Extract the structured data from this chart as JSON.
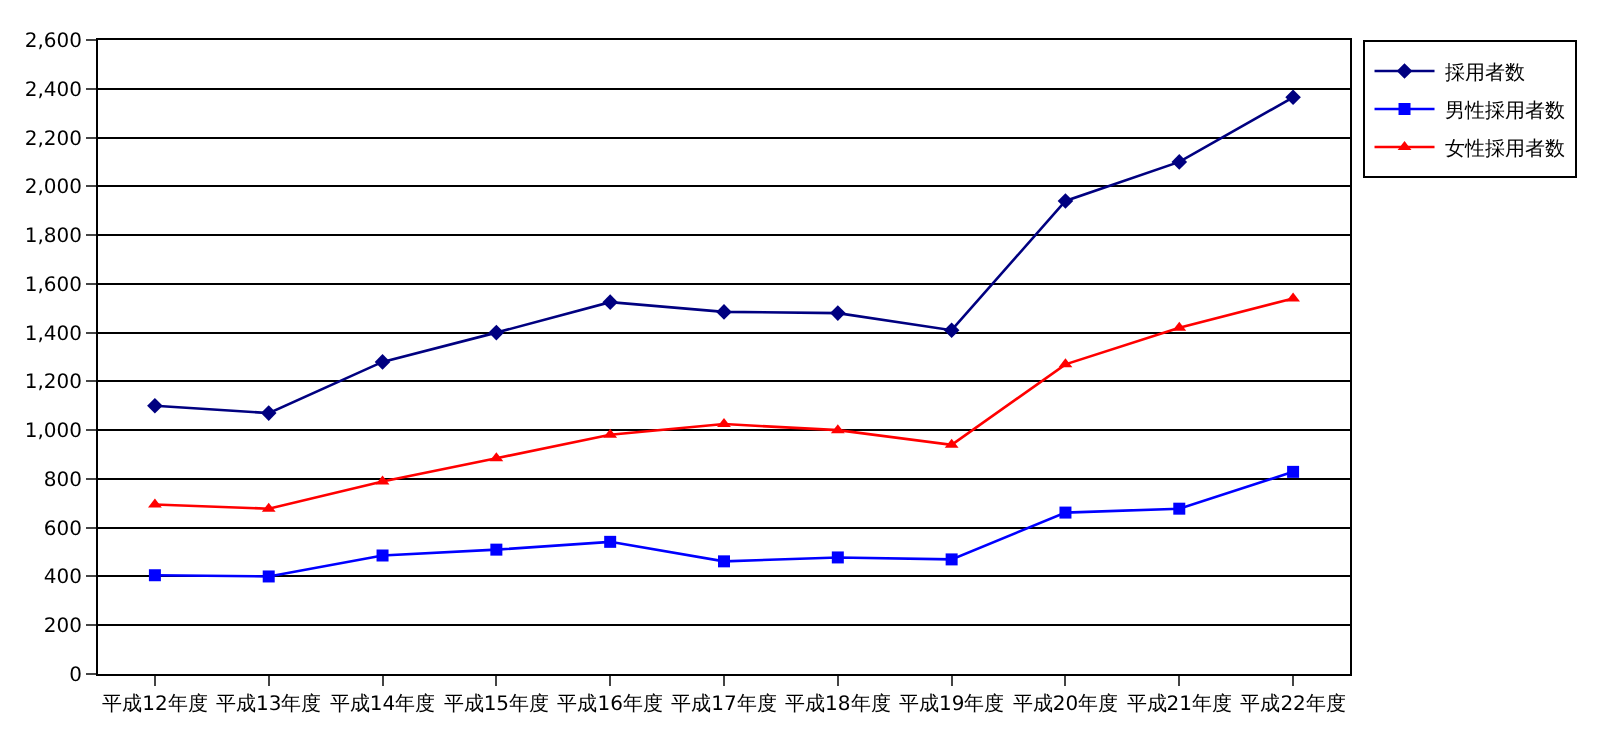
{
  "chart_data": {
    "type": "line",
    "categories": [
      "平成12年度",
      "平成13年度",
      "平成14年度",
      "平成15年度",
      "平成16年度",
      "平成17年度",
      "平成18年度",
      "平成19年度",
      "平成20年度",
      "平成21年度",
      "平成22年度"
    ],
    "series": [
      {
        "name": "採用者数",
        "color": "#000080",
        "marker": "diamond",
        "values": [
          1100,
          1070,
          1280,
          1400,
          1525,
          1485,
          1480,
          1410,
          1940,
          2100,
          2365
        ]
      },
      {
        "name": "男性採用者数",
        "color": "#0000ff",
        "marker": "square",
        "values": [
          405,
          400,
          486,
          510,
          542,
          462,
          478,
          470,
          662,
          678,
          829
        ]
      },
      {
        "name": "女性採用者数",
        "color": "#ff0000",
        "marker": "triangle",
        "values": [
          695,
          678,
          789,
          885,
          981,
          1025,
          1000,
          940,
          1270,
          1420,
          1540
        ]
      }
    ],
    "ylim": [
      0,
      2600
    ],
    "yticks": [
      {
        "value": 0,
        "label": "0"
      },
      {
        "value": 200,
        "label": "200"
      },
      {
        "value": 400,
        "label": "400"
      },
      {
        "value": 600,
        "label": "600"
      },
      {
        "value": 800,
        "label": "800"
      },
      {
        "value": 1000,
        "label": "1,000"
      },
      {
        "value": 1200,
        "label": "1,200"
      },
      {
        "value": 1400,
        "label": "1,400"
      },
      {
        "value": 1600,
        "label": "1,600"
      },
      {
        "value": 1800,
        "label": "1,800"
      },
      {
        "value": 2000,
        "label": "2,000"
      },
      {
        "value": 2200,
        "label": "2,200"
      },
      {
        "value": 2400,
        "label": "2,400"
      },
      {
        "value": 2600,
        "label": "2,600"
      }
    ],
    "grid": "y",
    "legend": "top right",
    "line_style": "solid"
  }
}
